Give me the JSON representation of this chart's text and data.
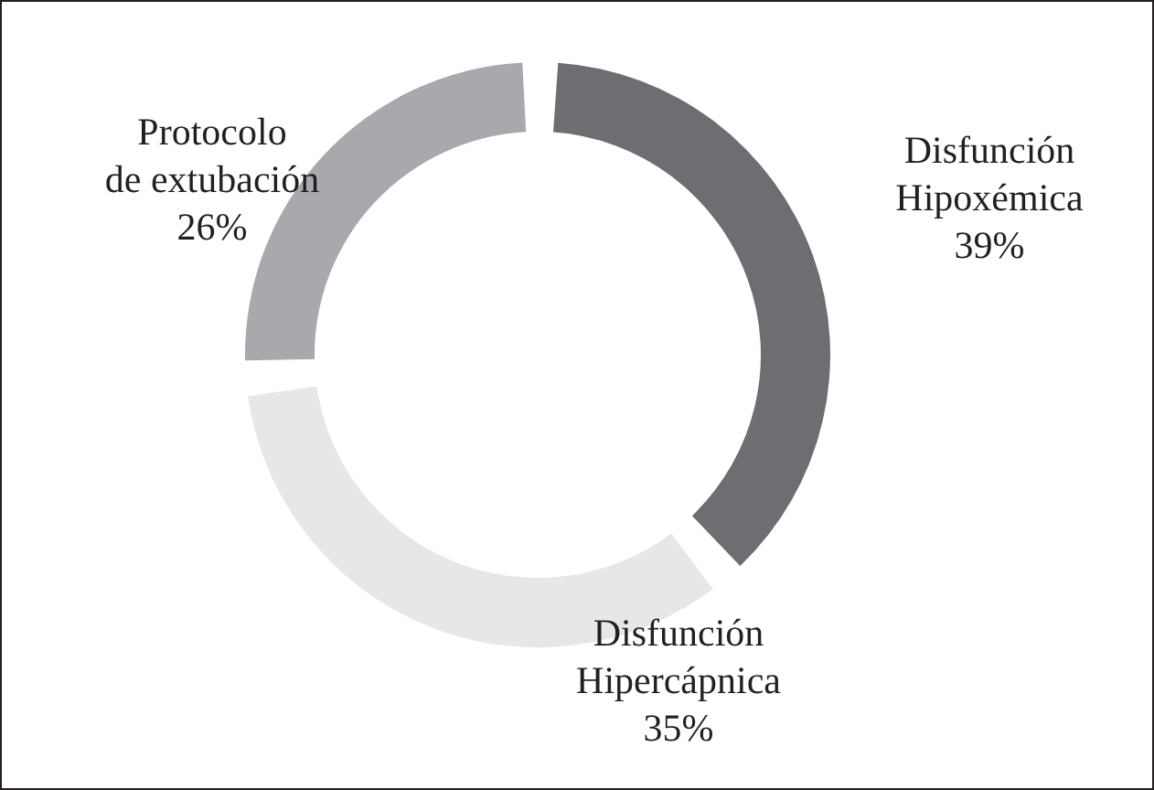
{
  "chart_data": {
    "type": "donut",
    "categories": [
      "Disfunción Hipoxémica",
      "Disfunción Hipercápnica",
      "Protocolo de extubación"
    ],
    "values": [
      39,
      35,
      26
    ],
    "colors": [
      "#6d6e71",
      "#e6e7e8",
      "#a7a9ac"
    ],
    "value_labels": [
      "39%",
      "35%",
      "26%"
    ]
  }
}
